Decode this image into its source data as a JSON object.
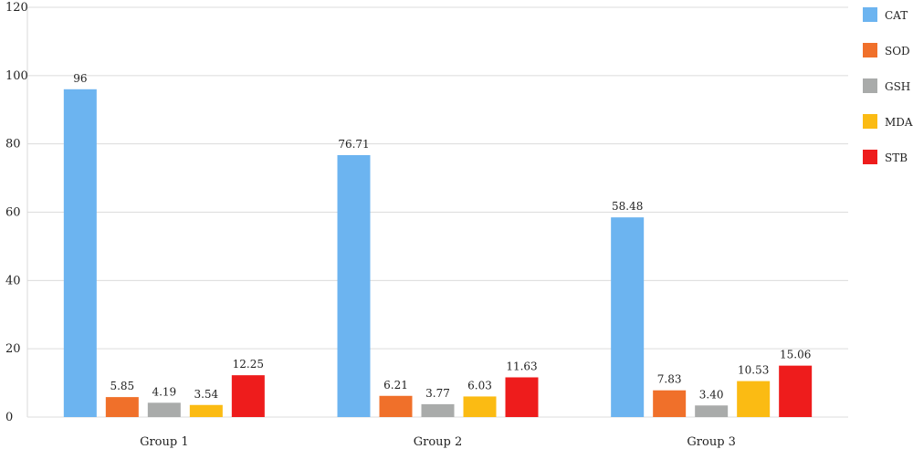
{
  "chart_data": {
    "type": "bar",
    "categories": [
      "Group 1",
      "Group 2",
      "Group 3"
    ],
    "series": [
      {
        "name": "CAT",
        "color": "#6CB4F0",
        "values": [
          96,
          76.71,
          58.48
        ],
        "labels": [
          "96",
          "76.71",
          "58.48"
        ]
      },
      {
        "name": "SOD",
        "color": "#F0702A",
        "values": [
          5.85,
          6.21,
          7.83
        ],
        "labels": [
          "5.85",
          "6.21",
          "7.83"
        ]
      },
      {
        "name": "GSH",
        "color": "#A9ABAA",
        "values": [
          4.19,
          3.77,
          3.4
        ],
        "labels": [
          "4.19",
          "3.77",
          "3.40"
        ]
      },
      {
        "name": "MDA",
        "color": "#FBBB13",
        "values": [
          3.54,
          6.03,
          10.53
        ],
        "labels": [
          "3.54",
          "6.03",
          "10.53"
        ]
      },
      {
        "name": "STB",
        "color": "#EE1C1C",
        "values": [
          12.25,
          11.63,
          15.06
        ],
        "labels": [
          "12.25",
          "11.63",
          "15.06"
        ]
      }
    ],
    "ylim": [
      0,
      120
    ],
    "yticks": [
      "0",
      "20",
      "40",
      "60",
      "80",
      "100",
      "120"
    ],
    "grid": true,
    "legend": "right",
    "title": "",
    "xlabel": "",
    "ylabel": ""
  }
}
